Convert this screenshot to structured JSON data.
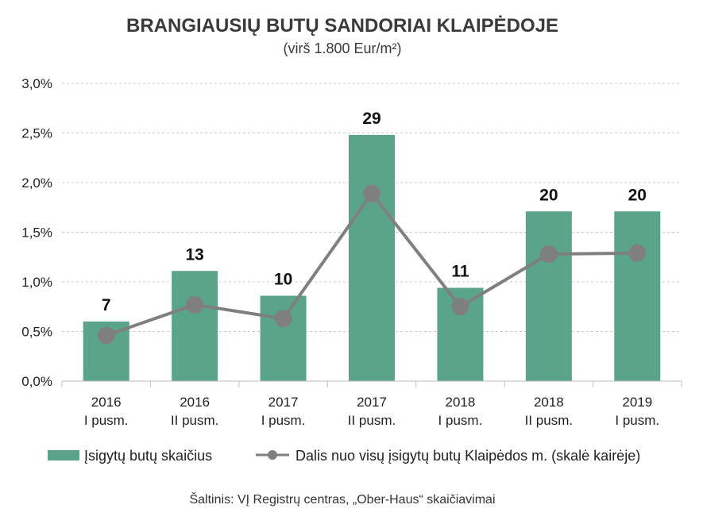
{
  "chart_data": {
    "type": "bar",
    "title": "BRANGIAUSIŲ BUTŲ SANDORIAI KLAIPĖDOJE",
    "subtitle": "(virš 1.800 Eur/m²)",
    "categories": [
      [
        "2016",
        "I pusm."
      ],
      [
        "2016",
        "II pusm."
      ],
      [
        "2017",
        "I pusm."
      ],
      [
        "2017",
        "II pusm."
      ],
      [
        "2018",
        "I pusm."
      ],
      [
        "2018",
        "II pusm."
      ],
      [
        "2019",
        "I pusm."
      ]
    ],
    "series": [
      {
        "name": "Įsigytų butų skaičius",
        "kind": "bar",
        "color": "#5aa58a",
        "values": [
          7,
          13,
          10,
          29,
          11,
          20,
          20
        ],
        "labels": [
          "7",
          "13",
          "10",
          "29",
          "11",
          "20",
          "20"
        ],
        "bar_scale_percent": [
          0.6,
          1.11,
          0.86,
          2.48,
          0.94,
          1.71,
          1.71
        ]
      },
      {
        "name": "Dalis nuo visų įsigytų butų Klaipėdos m. (skalė kairėje)",
        "kind": "line",
        "color": "#7f7f7f",
        "values": [
          0.46,
          0.77,
          0.63,
          1.89,
          0.75,
          1.28,
          1.29
        ]
      }
    ],
    "yaxis": {
      "ylim": [
        0,
        3.0
      ],
      "ticks": [
        0,
        0.5,
        1.0,
        1.5,
        2.0,
        2.5,
        3.0
      ],
      "tick_labels": [
        "0,0%",
        "0,5%",
        "1,0%",
        "1,5%",
        "2,0%",
        "2,5%",
        "3,0%"
      ]
    },
    "grid": true,
    "legend_position": "bottom",
    "source": "Šaltinis: VĮ Registrų centras, „Ober-Haus“ skaičiavimai"
  }
}
